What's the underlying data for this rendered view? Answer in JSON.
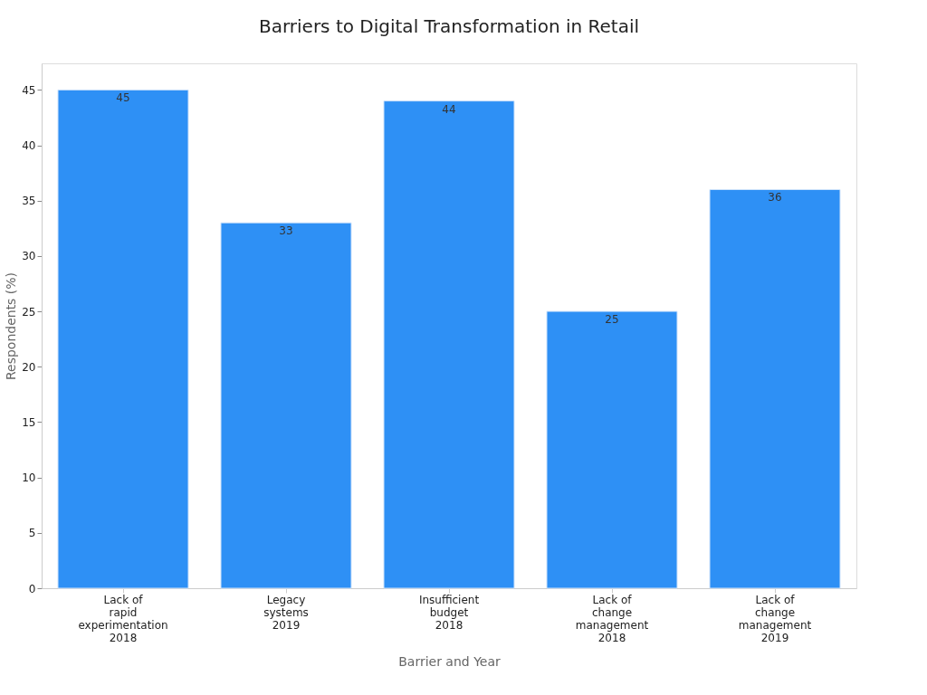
{
  "chart_data": {
    "type": "bar",
    "title": "Barriers to Digital Transformation in Retail",
    "xlabel": "Barrier and Year",
    "ylabel": "Respondents (%)",
    "categories": [
      "Lack of\nrapid\nexperimentation\n2018",
      "Legacy\nsystems\n2019",
      "Insufficient\nbudget\n2018",
      "Lack of\nchange\nmanagement\n2018",
      "Lack of\nchange\nmanagement\n2019"
    ],
    "values": [
      45,
      33,
      44,
      25,
      36
    ],
    "color": "#2e90f5",
    "ylim": [
      0,
      47.4
    ],
    "yticks": [
      0,
      5,
      10,
      15,
      20,
      25,
      30,
      35,
      40,
      45
    ],
    "grid": false,
    "data_labels": true
  }
}
